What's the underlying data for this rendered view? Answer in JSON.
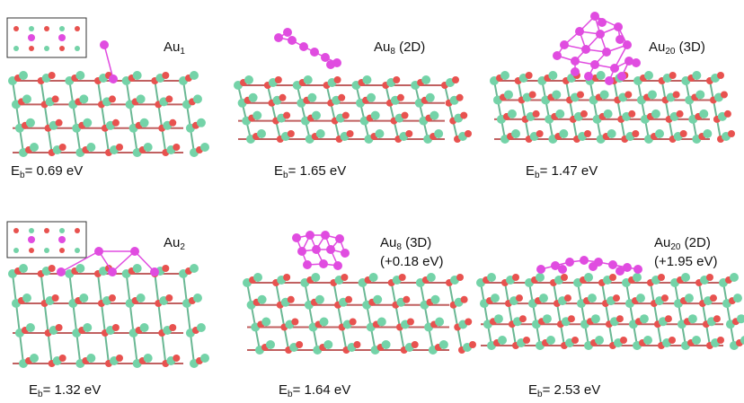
{
  "energy_symbol": {
    "main": "E",
    "sub": "b"
  },
  "panels": [
    {
      "label": {
        "main": "Au",
        "sub": "1"
      },
      "energy": "= 0.69 eV"
    },
    {
      "label": {
        "main": "Au",
        "sub": "8",
        "rest": " (2D)"
      },
      "energy": "= 1.65 eV"
    },
    {
      "label": {
        "main": "Au",
        "sub": "20",
        "rest": " (3D)"
      },
      "energy": "= 1.47 eV"
    },
    {
      "label": {
        "main": "Au",
        "sub": "2"
      },
      "energy": "= 1.32 eV"
    },
    {
      "label": {
        "main": "Au",
        "sub": "8",
        "rest": " (3D)"
      },
      "note": "(+0.18 eV)",
      "energy": "= 1.64 eV"
    },
    {
      "label": {
        "main": "Au",
        "sub": "20",
        "rest": " (2D)"
      },
      "note": "(+1.95 eV)",
      "energy": "= 2.53 eV"
    }
  ]
}
